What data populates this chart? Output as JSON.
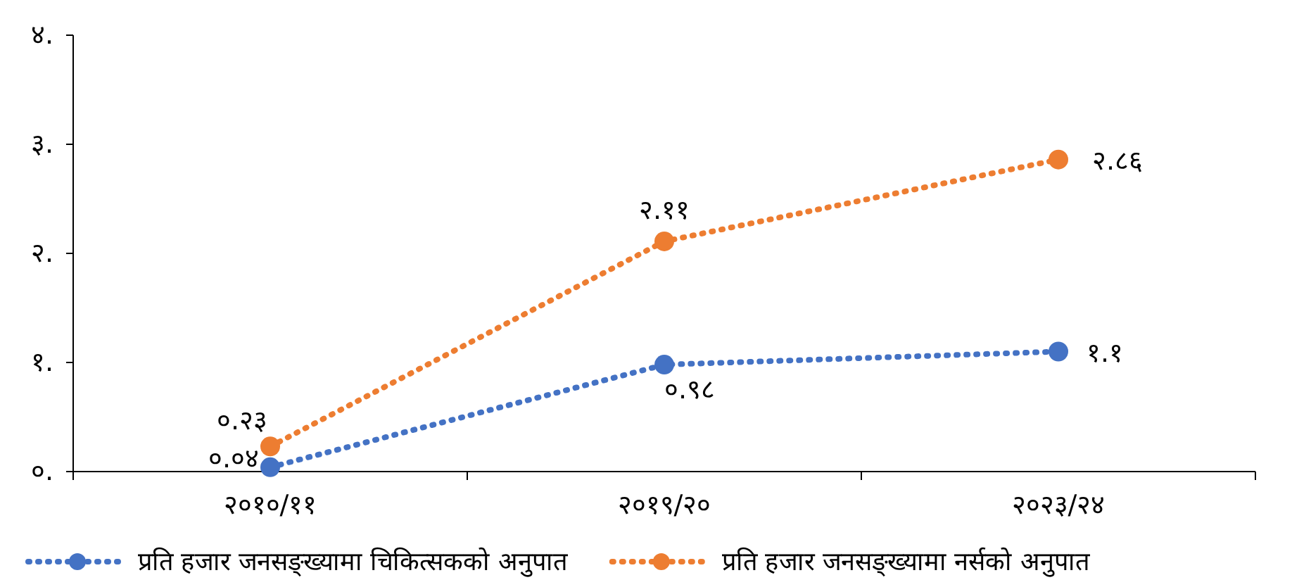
{
  "chart_data": {
    "type": "line",
    "categories": [
      "२०१०/११",
      "२०१९/२०",
      "२०२३/२४"
    ],
    "series": [
      {
        "name": "प्रति हजार जनसङ्ख्यामा चिकित्सकको अनुपात",
        "color": "#4472c4",
        "values": [
          0.04,
          0.98,
          1.1
        ],
        "value_labels": [
          "०.०४",
          "०.९८",
          "१.१"
        ]
      },
      {
        "name": "प्रति हजार जनसङ्ख्यामा नर्सको अनुपात",
        "color": "#ed7d31",
        "values": [
          0.23,
          2.11,
          2.86
        ],
        "value_labels": [
          "०.२३",
          "२.११",
          "२.८६"
        ]
      }
    ],
    "ylim": [
      0,
      4
    ],
    "yticks": [
      {
        "value": 0,
        "label": "०."
      },
      {
        "value": 1,
        "label": "१."
      },
      {
        "value": 2,
        "label": "२."
      },
      {
        "value": 3,
        "label": "३."
      },
      {
        "value": 4,
        "label": "४."
      }
    ],
    "grid": false,
    "legend": "bottom",
    "marker": "circle",
    "line_style": "dotted"
  }
}
